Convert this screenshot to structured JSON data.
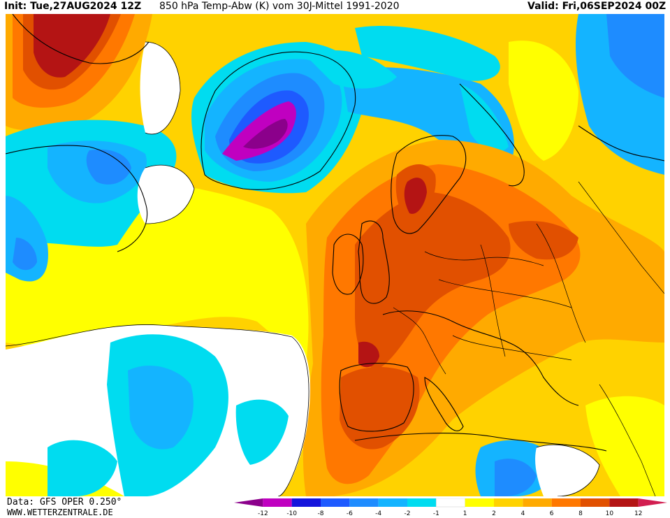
{
  "header": {
    "init_label": "Init:",
    "init_value": "Tue,27AUG2024 12Z",
    "title": "850 hPa Temp-Abw (K) vom 30J-Mittel 1991-2020",
    "valid_label": "Valid:",
    "valid_value": "Fri,06SEP2024 00Z"
  },
  "footer": {
    "source": "Data: GFS OPER 0.250°",
    "website": "WWW.WETTERZENTRALE.DE"
  },
  "colorbar": {
    "ticks": [
      "-12",
      "-10",
      "-8",
      "-6",
      "-4",
      "-2",
      "-1",
      "1",
      "2",
      "4",
      "6",
      "8",
      "10",
      "12"
    ],
    "colors": [
      "#8b008b",
      "#c000c0",
      "#1414dc",
      "#1e5aff",
      "#1e8cff",
      "#14b4ff",
      "#00dcf0",
      "#ffffff",
      "#ffff00",
      "#ffd200",
      "#ffaa00",
      "#ff7800",
      "#e15000",
      "#b41414",
      "#d21e50"
    ]
  },
  "palette": {
    "deep_purple": "#8b008b",
    "magenta": "#c000c0",
    "dark_blue": "#1414dc",
    "blue": "#1e5aff",
    "mid_blue": "#1e8cff",
    "light_blue": "#14b4ff",
    "cyan": "#00dcf0",
    "white": "#ffffff",
    "yellow": "#ffff00",
    "light_orange": "#ffd200",
    "orange": "#ffaa00",
    "dark_orange": "#ff7800",
    "burnt_orange": "#e15000",
    "red": "#b41414"
  }
}
